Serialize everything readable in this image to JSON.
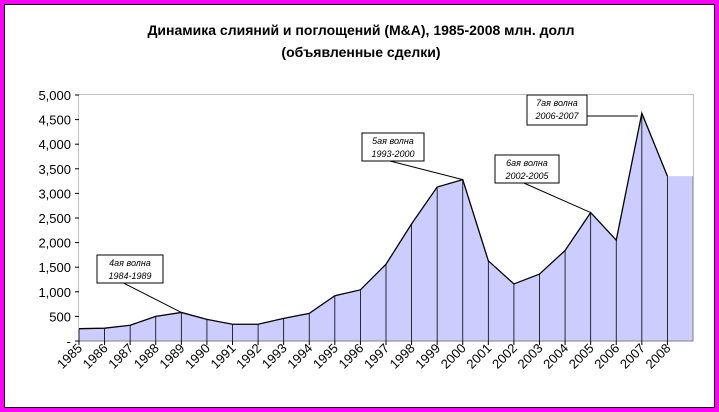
{
  "colors": {
    "border": "#ff00ff",
    "plot_area": "#ccccff",
    "line": "#000000",
    "background": "#ffffff"
  },
  "chart_data": {
    "type": "area",
    "title_line1": "Динамика слияний и поглощений (M&A), 1985-2008 млн. долл",
    "title_line2": "(объявленные сделки)",
    "xlabel": "",
    "ylabel": "",
    "ylim": [
      0,
      5000
    ],
    "y_ticks": [
      0,
      500,
      1000,
      1500,
      2000,
      2500,
      3000,
      3500,
      4000,
      4500,
      5000
    ],
    "y_tick_labels": [
      "-",
      "500",
      "1,000",
      "1,500",
      "2,000",
      "2,500",
      "3,000",
      "3,500",
      "4,000",
      "4,500",
      "5,000"
    ],
    "categories": [
      "1985",
      "1986",
      "1987",
      "1988",
      "1989",
      "1990",
      "1991",
      "1992",
      "1993",
      "1994",
      "1995",
      "1996",
      "1997",
      "1998",
      "1999",
      "2000",
      "2001",
      "2002",
      "2003",
      "2004",
      "2005",
      "2006",
      "2007",
      "2008"
    ],
    "values": [
      250,
      260,
      320,
      500,
      580,
      440,
      340,
      340,
      460,
      560,
      920,
      1040,
      1560,
      2380,
      3130,
      3280,
      1630,
      1160,
      1360,
      1840,
      2610,
      2050,
      4630,
      3350
    ],
    "grid": false,
    "annotations": [
      {
        "line1": "4ая волна",
        "line2": "1984-1989",
        "target_index": 4
      },
      {
        "line1": "5ая волна",
        "line2": "1993-2000",
        "target_index": 15
      },
      {
        "line1": "6ая волна",
        "line2": "2002-2005",
        "target_index": 20
      },
      {
        "line1": "7ая волна",
        "line2": "2006-2007",
        "target_index": 22
      }
    ]
  }
}
